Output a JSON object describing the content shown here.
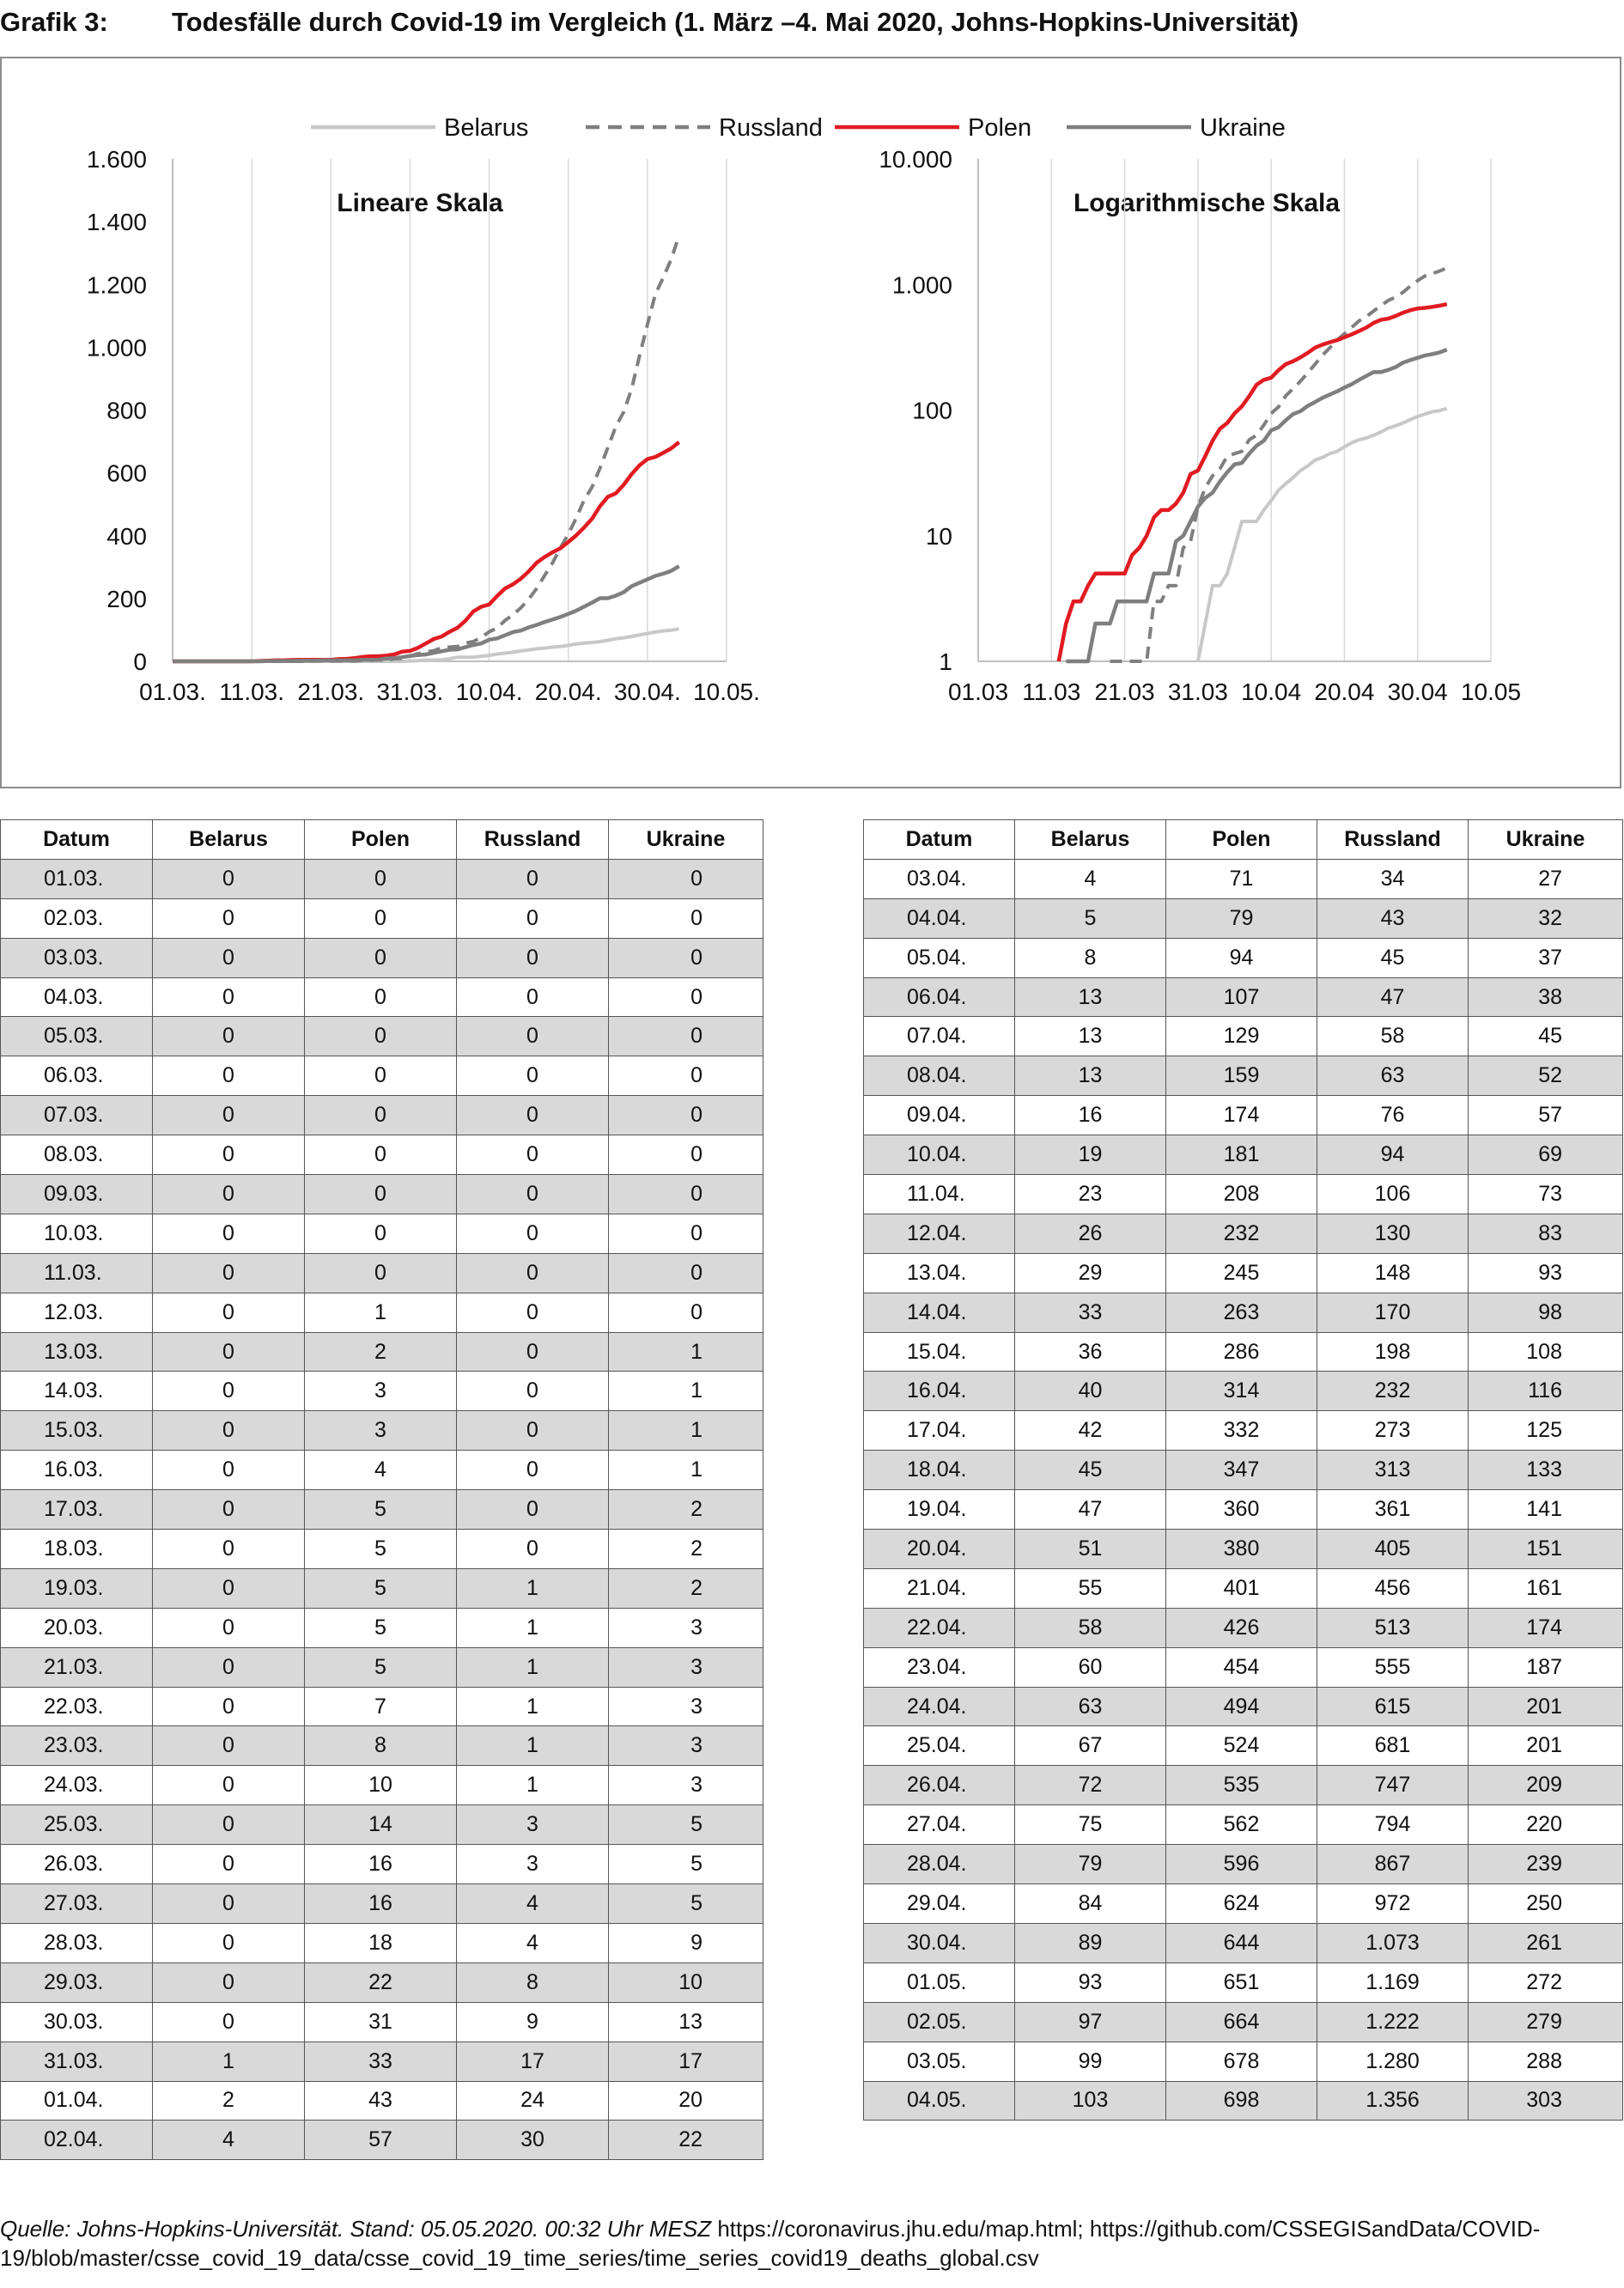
{
  "header": {
    "label": "Grafik 3:",
    "title": "Todesfälle durch Covid-19 im Vergleich (1. März –4. Mai 2020, Johns-Hopkins-Universität)"
  },
  "colors": {
    "belarus": "#c8c8c8",
    "russland": "#7f7f7f",
    "polen": "#e11b22",
    "ukraine": "#7f7f7f",
    "axis": "#bfbfbf",
    "grid": "#d9d9d9",
    "row_shade": "#d9d9d9"
  },
  "legend": {
    "items": [
      {
        "key": "belarus",
        "label": "Belarus",
        "style": "solid-light"
      },
      {
        "key": "russland",
        "label": "Russland",
        "style": "dashed"
      },
      {
        "key": "polen",
        "label": "Polen",
        "style": "solid-red"
      },
      {
        "key": "ukraine",
        "label": "Ukraine",
        "style": "solid-dark"
      }
    ]
  },
  "chart_data": [
    {
      "type": "line",
      "title": "Lineare Skala",
      "scale": "linear",
      "ylim": [
        0,
        1600
      ],
      "yticks": [
        0,
        200,
        400,
        600,
        800,
        1000,
        1200,
        1400,
        1600
      ],
      "ytick_labels": [
        "0",
        "200",
        "400",
        "600",
        "800",
        "1.000",
        "1.200",
        "1.400",
        "1.600"
      ],
      "xlim": [
        0,
        70
      ],
      "xtick_positions": [
        0,
        10,
        20,
        30,
        40,
        50,
        60,
        70
      ],
      "xtick_labels": [
        "01.03.",
        "11.03.",
        "21.03.",
        "31.03.",
        "10.04.",
        "20.04.",
        "30.04.",
        "10.05."
      ]
    },
    {
      "type": "line",
      "title": "Logarithmische Skala",
      "scale": "log",
      "ylim": [
        1,
        10000
      ],
      "yticks": [
        1,
        10,
        100,
        1000,
        10000
      ],
      "ytick_labels": [
        "1",
        "10",
        "100",
        "1.000",
        "10.000"
      ],
      "xlim": [
        0,
        70
      ],
      "xtick_positions": [
        0,
        10,
        20,
        30,
        40,
        50,
        60,
        70
      ],
      "xtick_labels": [
        "01.03",
        "11.03",
        "21.03",
        "31.03",
        "10.04",
        "20.04",
        "30.04",
        "10.05"
      ]
    }
  ],
  "table": {
    "headers": [
      "Datum",
      "Belarus",
      "Polen",
      "Russland",
      "Ukraine"
    ],
    "left_rows": [
      [
        "01.03.",
        "0",
        "0",
        "0",
        "0"
      ],
      [
        "02.03.",
        "0",
        "0",
        "0",
        "0"
      ],
      [
        "03.03.",
        "0",
        "0",
        "0",
        "0"
      ],
      [
        "04.03.",
        "0",
        "0",
        "0",
        "0"
      ],
      [
        "05.03.",
        "0",
        "0",
        "0",
        "0"
      ],
      [
        "06.03.",
        "0",
        "0",
        "0",
        "0"
      ],
      [
        "07.03.",
        "0",
        "0",
        "0",
        "0"
      ],
      [
        "08.03.",
        "0",
        "0",
        "0",
        "0"
      ],
      [
        "09.03.",
        "0",
        "0",
        "0",
        "0"
      ],
      [
        "10.03.",
        "0",
        "0",
        "0",
        "0"
      ],
      [
        "11.03.",
        "0",
        "0",
        "0",
        "0"
      ],
      [
        "12.03.",
        "0",
        "1",
        "0",
        "0"
      ],
      [
        "13.03.",
        "0",
        "2",
        "0",
        "1"
      ],
      [
        "14.03.",
        "0",
        "3",
        "0",
        "1"
      ],
      [
        "15.03.",
        "0",
        "3",
        "0",
        "1"
      ],
      [
        "16.03.",
        "0",
        "4",
        "0",
        "1"
      ],
      [
        "17.03.",
        "0",
        "5",
        "0",
        "2"
      ],
      [
        "18.03.",
        "0",
        "5",
        "0",
        "2"
      ],
      [
        "19.03.",
        "0",
        "5",
        "1",
        "2"
      ],
      [
        "20.03.",
        "0",
        "5",
        "1",
        "3"
      ],
      [
        "21.03.",
        "0",
        "5",
        "1",
        "3"
      ],
      [
        "22.03.",
        "0",
        "7",
        "1",
        "3"
      ],
      [
        "23.03.",
        "0",
        "8",
        "1",
        "3"
      ],
      [
        "24.03.",
        "0",
        "10",
        "1",
        "3"
      ],
      [
        "25.03.",
        "0",
        "14",
        "3",
        "5"
      ],
      [
        "26.03.",
        "0",
        "16",
        "3",
        "5"
      ],
      [
        "27.03.",
        "0",
        "16",
        "4",
        "5"
      ],
      [
        "28.03.",
        "0",
        "18",
        "4",
        "9"
      ],
      [
        "29.03.",
        "0",
        "22",
        "8",
        "10"
      ],
      [
        "30.03.",
        "0",
        "31",
        "9",
        "13"
      ],
      [
        "31.03.",
        "1",
        "33",
        "17",
        "17"
      ],
      [
        "01.04.",
        "2",
        "43",
        "24",
        "20"
      ],
      [
        "02.04.",
        "4",
        "57",
        "30",
        "22"
      ]
    ],
    "right_rows": [
      [
        "03.04.",
        "4",
        "71",
        "34",
        "27"
      ],
      [
        "04.04.",
        "5",
        "79",
        "43",
        "32"
      ],
      [
        "05.04.",
        "8",
        "94",
        "45",
        "37"
      ],
      [
        "06.04.",
        "13",
        "107",
        "47",
        "38"
      ],
      [
        "07.04.",
        "13",
        "129",
        "58",
        "45"
      ],
      [
        "08.04.",
        "13",
        "159",
        "63",
        "52"
      ],
      [
        "09.04.",
        "16",
        "174",
        "76",
        "57"
      ],
      [
        "10.04.",
        "19",
        "181",
        "94",
        "69"
      ],
      [
        "11.04.",
        "23",
        "208",
        "106",
        "73"
      ],
      [
        "12.04.",
        "26",
        "232",
        "130",
        "83"
      ],
      [
        "13.04.",
        "29",
        "245",
        "148",
        "93"
      ],
      [
        "14.04.",
        "33",
        "263",
        "170",
        "98"
      ],
      [
        "15.04.",
        "36",
        "286",
        "198",
        "108"
      ],
      [
        "16.04.",
        "40",
        "314",
        "232",
        "116"
      ],
      [
        "17.04.",
        "42",
        "332",
        "273",
        "125"
      ],
      [
        "18.04.",
        "45",
        "347",
        "313",
        "133"
      ],
      [
        "19.04.",
        "47",
        "360",
        "361",
        "141"
      ],
      [
        "20.04.",
        "51",
        "380",
        "405",
        "151"
      ],
      [
        "21.04.",
        "55",
        "401",
        "456",
        "161"
      ],
      [
        "22.04.",
        "58",
        "426",
        "513",
        "174"
      ],
      [
        "23.04.",
        "60",
        "454",
        "555",
        "187"
      ],
      [
        "24.04.",
        "63",
        "494",
        "615",
        "201"
      ],
      [
        "25.04.",
        "67",
        "524",
        "681",
        "201"
      ],
      [
        "26.04.",
        "72",
        "535",
        "747",
        "209"
      ],
      [
        "27.04.",
        "75",
        "562",
        "794",
        "220"
      ],
      [
        "28.04.",
        "79",
        "596",
        "867",
        "239"
      ],
      [
        "29.04.",
        "84",
        "624",
        "972",
        "250"
      ],
      [
        "30.04.",
        "89",
        "644",
        "1.073",
        "261"
      ],
      [
        "01.05.",
        "93",
        "651",
        "1.169",
        "272"
      ],
      [
        "02.05.",
        "97",
        "664",
        "1.222",
        "279"
      ],
      [
        "03.05.",
        "99",
        "678",
        "1.280",
        "288"
      ],
      [
        "04.05.",
        "103",
        "698",
        "1.356",
        "303"
      ]
    ]
  },
  "source": {
    "italic": "Quelle: Johns-Hopkins-Universität. Stand: 05.05.2020. 00:32 Uhr MESZ",
    "urls": " https://coronavirus.jhu.edu/map.html; https://github.com/CSSEGISandData/COVID-19/blob/master/csse_covid_19_data/csse_covid_19_time_series/time_series_covid19_deaths_global.csv"
  }
}
